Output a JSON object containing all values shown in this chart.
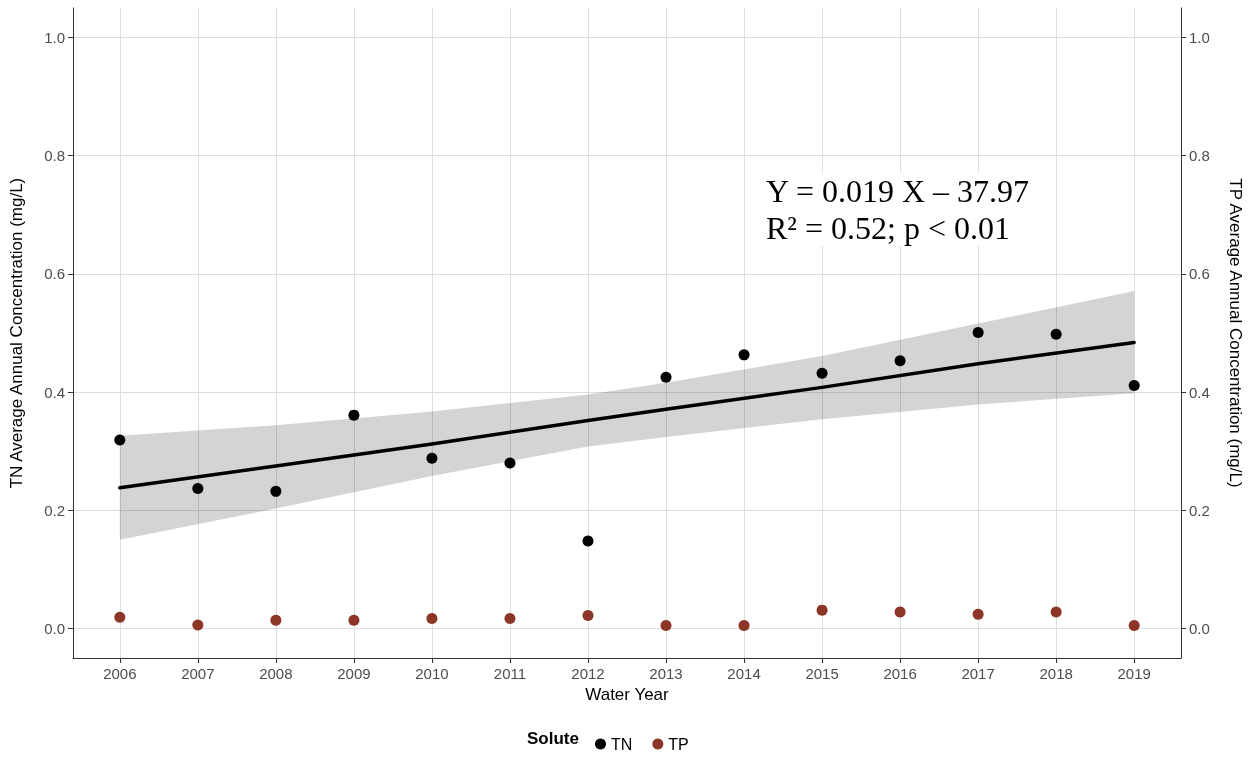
{
  "chart_data": {
    "type": "scatter",
    "xlabel": "Water Year",
    "ylabel": "TN Average Annual Concentration (mg/L)",
    "y2label": "TP Average Annual Concentration (mg/L)",
    "legend_title": "Solute",
    "annotations": [
      "Y = 0.019 X – 37.97",
      "R² = 0.52; p < 0.01"
    ],
    "x": [
      2006,
      2007,
      2008,
      2009,
      2010,
      2011,
      2012,
      2013,
      2014,
      2015,
      2016,
      2017,
      2018,
      2019
    ],
    "series": [
      {
        "name": "TN",
        "color": "#000000",
        "values": [
          0.319,
          0.237,
          0.232,
          0.361,
          0.288,
          0.28,
          0.148,
          0.425,
          0.463,
          0.432,
          0.453,
          0.501,
          0.498,
          0.411
        ]
      },
      {
        "name": "TP",
        "color": "#8b3626",
        "values": [
          0.019,
          0.006,
          0.014,
          0.014,
          0.017,
          0.017,
          0.022,
          0.005,
          0.005,
          0.031,
          0.028,
          0.024,
          0.028,
          0.005
        ]
      },
      {
        "type": "line",
        "color": "#000000",
        "marker": "none",
        "x": [
          2006,
          2008,
          2010,
          2012,
          2013,
          2015,
          2017,
          2019
        ],
        "values": [
          0.238,
          0.275,
          0.312,
          0.352,
          0.371,
          0.408,
          0.448,
          0.484
        ],
        "lower": [
          0.15,
          0.203,
          0.258,
          0.308,
          0.324,
          0.354,
          0.379,
          0.398
        ],
        "upper": [
          0.326,
          0.344,
          0.367,
          0.396,
          0.416,
          0.461,
          0.516,
          0.571
        ]
      }
    ],
    "xlim": [
      2005.4,
      2019.6
    ],
    "xticks": [
      2006,
      2007,
      2008,
      2009,
      2010,
      2011,
      2012,
      2013,
      2014,
      2015,
      2016,
      2017,
      2018,
      2019
    ],
    "ylim": [
      -0.05,
      1.05
    ],
    "yticks": [
      {
        "value": 0,
        "label": "0.0"
      },
      {
        "value": 0.2,
        "label": "0.2"
      },
      {
        "value": 0.4,
        "label": "0.4"
      },
      {
        "value": 0.6,
        "label": "0.6"
      },
      {
        "value": 0.8,
        "label": "0.8"
      },
      {
        "value": 1,
        "label": "1.0"
      }
    ],
    "y2lim": [
      -0.05,
      1.05
    ],
    "y2ticks": [
      {
        "value": 0,
        "label": "0.0"
      },
      {
        "value": 0.2,
        "label": "0.2"
      },
      {
        "value": 0.4,
        "label": "0.4"
      },
      {
        "value": 0.6,
        "label": "0.6"
      },
      {
        "value": 0.8,
        "label": "0.8"
      },
      {
        "value": 1,
        "label": "1.0"
      }
    ],
    "grid": true,
    "legend": "bottom",
    "marker": "circle",
    "line_style": "solid"
  }
}
